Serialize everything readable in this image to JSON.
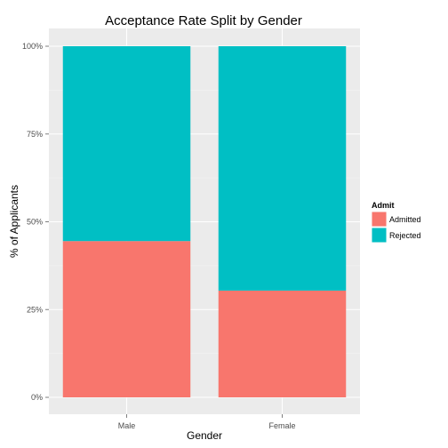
{
  "chart_data": {
    "type": "bar",
    "stacked": true,
    "title": "Acceptance Rate Split by Gender",
    "xlabel": "Gender",
    "ylabel": "% of Applicants",
    "categories": [
      "Male",
      "Female"
    ],
    "series": [
      {
        "name": "Admitted",
        "values": [
          0.445,
          0.304
        ],
        "color": "#F8766D"
      },
      {
        "name": "Rejected",
        "values": [
          0.555,
          0.696
        ],
        "color": "#00BFC4"
      }
    ],
    "ylim": [
      0,
      1
    ],
    "yticks": [
      {
        "value": 0,
        "label": "0%"
      },
      {
        "value": 0.25,
        "label": "25%"
      },
      {
        "value": 0.5,
        "label": "50%"
      },
      {
        "value": 0.75,
        "label": "75%"
      },
      {
        "value": 1,
        "label": "100%"
      }
    ],
    "legend": {
      "title": "Admit",
      "position": "right"
    },
    "grid": true,
    "panel_background": "#EBEBEB"
  }
}
